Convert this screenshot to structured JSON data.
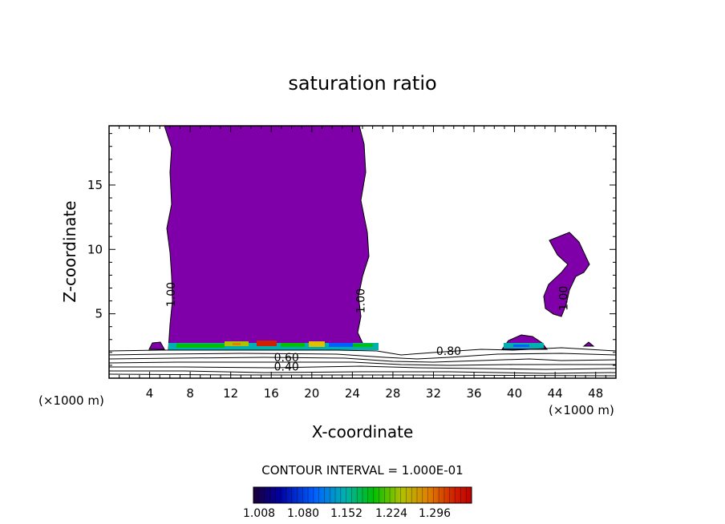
{
  "chart_data": {
    "type": "contour",
    "title": "saturation ratio",
    "xlabel": "X-coordinate",
    "ylabel": "Z-coordinate",
    "x_unit_left": "(×1000 m)",
    "x_unit_right": "(×1000 m)",
    "xlim": [
      0,
      50
    ],
    "ylim": [
      0,
      19.6
    ],
    "x_ticks": [
      4,
      8,
      12,
      16,
      20,
      24,
      28,
      32,
      36,
      40,
      44,
      48
    ],
    "y_ticks": [
      5,
      10,
      15
    ],
    "contour_interval_text": "CONTOUR INTERVAL = 1.000E-01",
    "contour_labels": [
      {
        "text": "1.00",
        "x": 6.5,
        "z": 6.5
      },
      {
        "text": "1.00",
        "x": 25.2,
        "z": 6.0
      },
      {
        "text": "1.00",
        "x": 45.2,
        "z": 6.2
      },
      {
        "text": "0.80",
        "x": 33.5,
        "z": 1.8
      },
      {
        "text": "0.60",
        "x": 17.5,
        "z": 1.3
      },
      {
        "text": "0.40",
        "x": 17.5,
        "z": 0.6
      }
    ],
    "fill_threshold": 1.0,
    "fill_color": "#7f00a8",
    "colorbar": {
      "labels": [
        "1.008",
        "1.080",
        "1.152",
        "1.224",
        "1.296"
      ],
      "colors": [
        "#1a0038",
        "#0000a0",
        "#0050ff",
        "#00b0b0",
        "#00c000",
        "#b0c000",
        "#e08000",
        "#d02000",
        "#c00000"
      ]
    }
  }
}
